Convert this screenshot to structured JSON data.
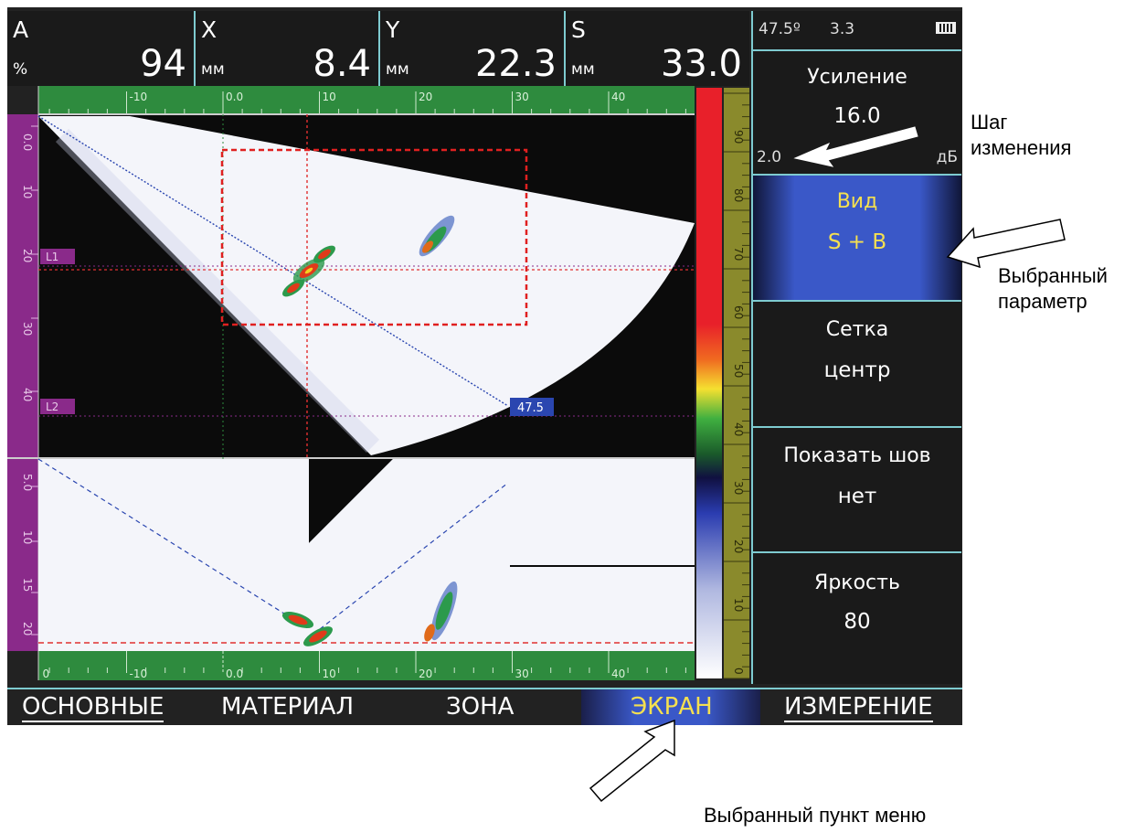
{
  "header": {
    "a": {
      "letter": "A",
      "unit": "%",
      "value": "94"
    },
    "x": {
      "letter": "X",
      "unit": "мм",
      "value": "8.4"
    },
    "y": {
      "letter": "Y",
      "unit": "мм",
      "value": "22.3"
    },
    "s": {
      "letter": "S",
      "unit": "мм",
      "value": "33.0"
    }
  },
  "status": {
    "angle": "47.5º",
    "value": "3.3"
  },
  "params": {
    "gain": {
      "label": "Усиление",
      "value": "16.0",
      "step": "2.0",
      "unit": "дБ"
    },
    "view": {
      "label": "Вид",
      "value": "S + B"
    },
    "grid": {
      "label": "Сетка",
      "value": "центр"
    },
    "seam": {
      "label": "Показать шов",
      "value": "нет"
    },
    "brightness": {
      "label": "Яркость",
      "value": "80"
    }
  },
  "menu": {
    "items": [
      {
        "label": "ОСНОВНЫЕ"
      },
      {
        "label": "МАТЕРИАЛ"
      },
      {
        "label": "ЗОНА"
      },
      {
        "label": "ЭКРАН"
      },
      {
        "label": "ИЗМЕРЕНИЕ"
      }
    ],
    "selected_index": 3
  },
  "scales": {
    "horizontal_ticks": [
      "-10",
      "0.0",
      "10",
      "20",
      "30",
      "40"
    ],
    "horizontal_bottom_ticks": [
      "0",
      "-10",
      "0.0",
      "10",
      "20",
      "30",
      "40"
    ],
    "top_vertical_ticks": [
      "0.0",
      "10",
      "20",
      "30",
      "40"
    ],
    "bottom_vertical_ticks": [
      "5.0",
      "10",
      "15",
      "20"
    ],
    "color_scale_ticks": [
      "90",
      "80",
      "70",
      "60",
      "50",
      "40",
      "30",
      "20",
      "10",
      "0"
    ]
  },
  "markers": {
    "l1": "L1",
    "l2": "L2",
    "beam_angle": "47.5"
  },
  "annotations": {
    "step": "Шаг изменения",
    "selected_param": "Выбранный параметр",
    "selected_menu": "Выбранный пункт меню"
  },
  "colors": {
    "background": "#222222",
    "accent": "#7ecbd0",
    "ruler_green": "#2e8b3e",
    "ruler_purple": "#8a2a8a",
    "ruler_olive": "#8a8a2c",
    "selected_gradient": "#3a58c8",
    "highlight_text": "#f5e050"
  }
}
